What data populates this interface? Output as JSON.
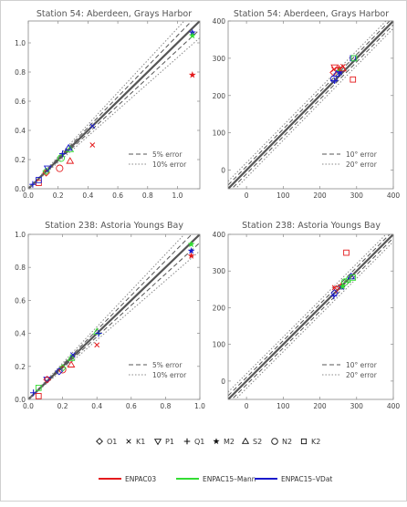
{
  "chart_data": [
    {
      "type": "scatter",
      "title": "Station 54: Aberdeen, Grays Harbor",
      "xlim": [
        0,
        1.15
      ],
      "ylim": [
        0,
        1.15
      ],
      "xticks": [
        "0.0",
        "0.2",
        "0.4",
        "0.6",
        "0.8",
        "1.0"
      ],
      "yticks": [
        "0.0",
        "0.2",
        "0.4",
        "0.6",
        "0.8",
        "1.0"
      ],
      "tick_values": [
        0,
        0.2,
        0.4,
        0.6,
        0.8,
        1.0
      ],
      "error_lines": [
        {
          "label": "5% error",
          "pct": 5,
          "style": "dashed"
        },
        {
          "label": "10% error",
          "pct": 10,
          "style": "dotted"
        }
      ],
      "legend_position": "bottom-right",
      "points": [
        {
          "x": 1.1,
          "y": 0.78,
          "marker": "M2",
          "model": "ENPAC03"
        },
        {
          "x": 1.1,
          "y": 1.07,
          "marker": "M2",
          "model": "ENPAC15-VDat"
        },
        {
          "x": 1.1,
          "y": 1.05,
          "marker": "M2",
          "model": "ENPAC15-Mann"
        },
        {
          "x": 0.43,
          "y": 0.3,
          "marker": "K1",
          "model": "ENPAC03"
        },
        {
          "x": 0.43,
          "y": 0.43,
          "marker": "K1",
          "model": "ENPAC15-VDat"
        },
        {
          "x": 0.28,
          "y": 0.19,
          "marker": "S2",
          "model": "ENPAC03"
        },
        {
          "x": 0.28,
          "y": 0.27,
          "marker": "S2",
          "model": "ENPAC15-Mann"
        },
        {
          "x": 0.27,
          "y": 0.28,
          "marker": "S2",
          "model": "ENPAC15-VDat"
        },
        {
          "x": 0.21,
          "y": 0.14,
          "marker": "N2",
          "model": "ENPAC03"
        },
        {
          "x": 0.22,
          "y": 0.21,
          "marker": "N2",
          "model": "ENPAC15-Mann"
        },
        {
          "x": 0.23,
          "y": 0.24,
          "marker": "Q1",
          "model": "ENPAC15-VDat"
        },
        {
          "x": 0.12,
          "y": 0.11,
          "marker": "O1",
          "model": "ENPAC03"
        },
        {
          "x": 0.12,
          "y": 0.12,
          "marker": "O1",
          "model": "ENPAC15-Mann"
        },
        {
          "x": 0.13,
          "y": 0.14,
          "marker": "P1",
          "model": "ENPAC15-VDat"
        },
        {
          "x": 0.07,
          "y": 0.04,
          "marker": "K2",
          "model": "ENPAC03"
        },
        {
          "x": 0.07,
          "y": 0.06,
          "marker": "K2",
          "model": "ENPAC15-VDat"
        },
        {
          "x": 0.03,
          "y": 0.03,
          "marker": "Q1",
          "model": "ENPAC15-VDat"
        }
      ]
    },
    {
      "type": "scatter",
      "title": "Station 54: Aberdeen, Grays Harbor",
      "xlim": [
        -50,
        400
      ],
      "ylim": [
        -50,
        400
      ],
      "xticks": [
        "0",
        "100",
        "200",
        "300",
        "400"
      ],
      "yticks": [
        "0",
        "100",
        "200",
        "300",
        "400"
      ],
      "tick_values": [
        0,
        100,
        200,
        300,
        400
      ],
      "error_lines": [
        {
          "label": "10° error",
          "deg": 10,
          "style": "dashed"
        },
        {
          "label": "20° error",
          "deg": 20,
          "style": "dotted"
        }
      ],
      "legend_position": "bottom-right",
      "points": [
        {
          "x": 238,
          "y": 270,
          "marker": "K1",
          "model": "ENPAC03"
        },
        {
          "x": 237,
          "y": 262,
          "marker": "O1",
          "model": "ENPAC03"
        },
        {
          "x": 240,
          "y": 276,
          "marker": "P1",
          "model": "ENPAC03"
        },
        {
          "x": 252,
          "y": 273,
          "marker": "M2",
          "model": "ENPAC03"
        },
        {
          "x": 253,
          "y": 265,
          "marker": "M2",
          "model": "ENPAC15-Mann"
        },
        {
          "x": 255,
          "y": 262,
          "marker": "M2",
          "model": "ENPAC15-VDat"
        },
        {
          "x": 262,
          "y": 272,
          "marker": "S2",
          "model": "ENPAC03"
        },
        {
          "x": 263,
          "y": 278,
          "marker": "K1",
          "model": "ENPAC03"
        },
        {
          "x": 238,
          "y": 244,
          "marker": "N2",
          "model": "ENPAC15-VDat"
        },
        {
          "x": 240,
          "y": 240,
          "marker": "Q1",
          "model": "ENPAC15-VDat"
        },
        {
          "x": 245,
          "y": 258,
          "marker": "S2",
          "model": "ENPAC15-VDat"
        },
        {
          "x": 290,
          "y": 300,
          "marker": "K2",
          "model": "ENPAC15-VDat"
        },
        {
          "x": 293,
          "y": 300,
          "marker": "K2",
          "model": "ENPAC15-Mann"
        },
        {
          "x": 290,
          "y": 243,
          "marker": "K2",
          "model": "ENPAC03"
        }
      ]
    },
    {
      "type": "scatter",
      "title": "Station 238: Astoria Youngs Bay",
      "xlim": [
        0,
        1.0
      ],
      "ylim": [
        0,
        1.0
      ],
      "xticks": [
        "0.0",
        "0.2",
        "0.4",
        "0.6",
        "0.8",
        "1.0"
      ],
      "yticks": [
        "0.0",
        "0.2",
        "0.4",
        "0.6",
        "0.8",
        "1.0"
      ],
      "tick_values": [
        0,
        0.2,
        0.4,
        0.6,
        0.8,
        1.0
      ],
      "error_lines": [
        {
          "label": "5% error",
          "pct": 5,
          "style": "dashed"
        },
        {
          "label": "10% error",
          "pct": 10,
          "style": "dotted"
        }
      ],
      "legend_position": "bottom-right",
      "points": [
        {
          "x": 0.95,
          "y": 0.87,
          "marker": "M2",
          "model": "ENPAC03"
        },
        {
          "x": 0.95,
          "y": 0.9,
          "marker": "M2",
          "model": "ENPAC15-VDat"
        },
        {
          "x": 0.95,
          "y": 0.94,
          "marker": "M2",
          "model": "ENPAC15-Mann"
        },
        {
          "x": 0.4,
          "y": 0.33,
          "marker": "K1",
          "model": "ENPAC03"
        },
        {
          "x": 0.4,
          "y": 0.41,
          "marker": "S2",
          "model": "ENPAC15-Mann"
        },
        {
          "x": 0.41,
          "y": 0.4,
          "marker": "Q1",
          "model": "ENPAC15-VDat"
        },
        {
          "x": 0.25,
          "y": 0.21,
          "marker": "S2",
          "model": "ENPAC03"
        },
        {
          "x": 0.25,
          "y": 0.25,
          "marker": "S2",
          "model": "ENPAC15-Mann"
        },
        {
          "x": 0.26,
          "y": 0.27,
          "marker": "K1",
          "model": "ENPAC15-VDat"
        },
        {
          "x": 0.2,
          "y": 0.18,
          "marker": "N2",
          "model": "ENPAC03"
        },
        {
          "x": 0.2,
          "y": 0.19,
          "marker": "O1",
          "model": "ENPAC15-Mann"
        },
        {
          "x": 0.18,
          "y": 0.17,
          "marker": "O1",
          "model": "ENPAC15-VDat"
        },
        {
          "x": 0.11,
          "y": 0.12,
          "marker": "P1",
          "model": "ENPAC15-VDat"
        },
        {
          "x": 0.11,
          "y": 0.12,
          "marker": "O1",
          "model": "ENPAC03"
        },
        {
          "x": 0.06,
          "y": 0.02,
          "marker": "K2",
          "model": "ENPAC03"
        },
        {
          "x": 0.06,
          "y": 0.07,
          "marker": "K2",
          "model": "ENPAC15-Mann"
        },
        {
          "x": 0.03,
          "y": 0.04,
          "marker": "Q1",
          "model": "ENPAC15-VDat"
        }
      ]
    },
    {
      "type": "scatter",
      "title": "Station 238: Astoria Youngs Bay",
      "xlim": [
        -50,
        400
      ],
      "ylim": [
        -50,
        400
      ],
      "xticks": [
        "0",
        "100",
        "200",
        "300",
        "400"
      ],
      "yticks": [
        "0",
        "100",
        "200",
        "300",
        "400"
      ],
      "tick_values": [
        0,
        100,
        200,
        300,
        400
      ],
      "error_lines": [
        {
          "label": "10° error",
          "deg": 10,
          "style": "dashed"
        },
        {
          "label": "20° error",
          "deg": 20,
          "style": "dotted"
        }
      ],
      "legend_position": "bottom-right",
      "points": [
        {
          "x": 272,
          "y": 350,
          "marker": "K2",
          "model": "ENPAC03"
        },
        {
          "x": 240,
          "y": 255,
          "marker": "K1",
          "model": "ENPAC03"
        },
        {
          "x": 245,
          "y": 250,
          "marker": "P1",
          "model": "ENPAC03"
        },
        {
          "x": 258,
          "y": 260,
          "marker": "M2",
          "model": "ENPAC03"
        },
        {
          "x": 260,
          "y": 256,
          "marker": "M2",
          "model": "ENPAC15-VDat"
        },
        {
          "x": 262,
          "y": 258,
          "marker": "M2",
          "model": "ENPAC15-Mann"
        },
        {
          "x": 238,
          "y": 232,
          "marker": "Q1",
          "model": "ENPAC15-VDat"
        },
        {
          "x": 240,
          "y": 240,
          "marker": "O1",
          "model": "ENPAC15-VDat"
        },
        {
          "x": 268,
          "y": 270,
          "marker": "N2",
          "model": "ENPAC15-Mann"
        },
        {
          "x": 275,
          "y": 276,
          "marker": "S2",
          "model": "ENPAC15-Mann"
        },
        {
          "x": 285,
          "y": 285,
          "marker": "S2",
          "model": "ENPAC15-VDat"
        },
        {
          "x": 290,
          "y": 282,
          "marker": "K2",
          "model": "ENPAC15-Mann"
        }
      ]
    }
  ],
  "marker_legend": [
    {
      "label": "O1",
      "symbol": "diamond"
    },
    {
      "label": "K1",
      "symbol": "x"
    },
    {
      "label": "P1",
      "symbol": "triangle-down"
    },
    {
      "label": "Q1",
      "symbol": "plus"
    },
    {
      "label": "M2",
      "symbol": "star"
    },
    {
      "label": "S2",
      "symbol": "triangle-up"
    },
    {
      "label": "N2",
      "symbol": "circle"
    },
    {
      "label": "K2",
      "symbol": "square"
    }
  ],
  "model_legend": [
    {
      "label": "ENPAC03",
      "color": "#e41a1c"
    },
    {
      "label": "ENPAC15–Mann",
      "color": "#33dd33"
    },
    {
      "label": "ENPAC15–VDat",
      "color": "#1a1acc"
    }
  ],
  "colors": {
    "ENPAC03": "#e41a1c",
    "ENPAC15-Mann": "#33dd33",
    "ENPAC15-VDat": "#1a1acc"
  }
}
